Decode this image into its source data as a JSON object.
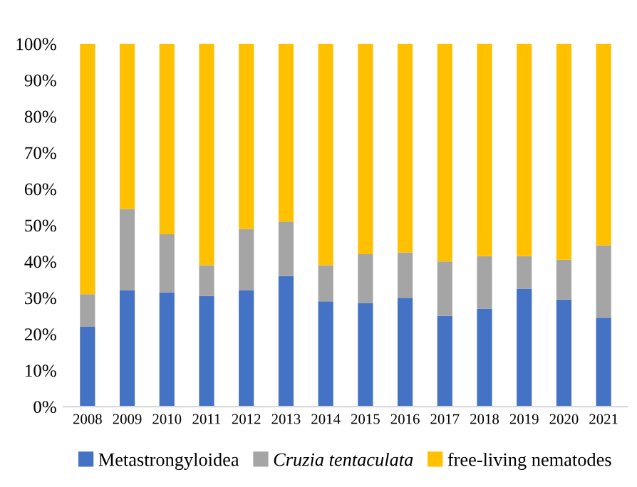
{
  "chart_data": {
    "type": "bar",
    "stacked": true,
    "categories": [
      "2008",
      "2009",
      "2010",
      "2011",
      "2012",
      "2013",
      "2014",
      "2015",
      "2016",
      "2017",
      "2018",
      "2019",
      "2020",
      "2021"
    ],
    "series": [
      {
        "name": "Metastrongyloidea",
        "color": "#4472c4",
        "values": [
          22,
          32,
          31.5,
          30.5,
          32,
          36,
          29,
          28.5,
          30,
          25,
          27,
          32.5,
          29.5,
          24.5
        ]
      },
      {
        "name": "Cruzia tentaculata",
        "color": "#a5a5a5",
        "values": [
          9,
          22.5,
          16,
          8.5,
          17,
          15,
          10,
          13.5,
          12.5,
          15,
          14.5,
          9,
          11,
          20
        ]
      },
      {
        "name": "free-living nematodes",
        "color": "#ffc000",
        "values": [
          69,
          45.5,
          52.5,
          61,
          51,
          49,
          61,
          58,
          57.5,
          60,
          58.5,
          58.5,
          59.5,
          55.5
        ]
      }
    ],
    "ylim": [
      0,
      100
    ],
    "yticks": [
      {
        "value": 0,
        "label": "0%"
      },
      {
        "value": 10,
        "label": "10%"
      },
      {
        "value": 20,
        "label": "20%"
      },
      {
        "value": 30,
        "label": "30%"
      },
      {
        "value": 40,
        "label": "40%"
      },
      {
        "value": 50,
        "label": "50%"
      },
      {
        "value": 60,
        "label": "60%"
      },
      {
        "value": 70,
        "label": "70%"
      },
      {
        "value": 80,
        "label": "80%"
      },
      {
        "value": 90,
        "label": "90%"
      },
      {
        "value": 100,
        "label": "100%"
      }
    ],
    "legend": "bottom",
    "grid": false
  }
}
